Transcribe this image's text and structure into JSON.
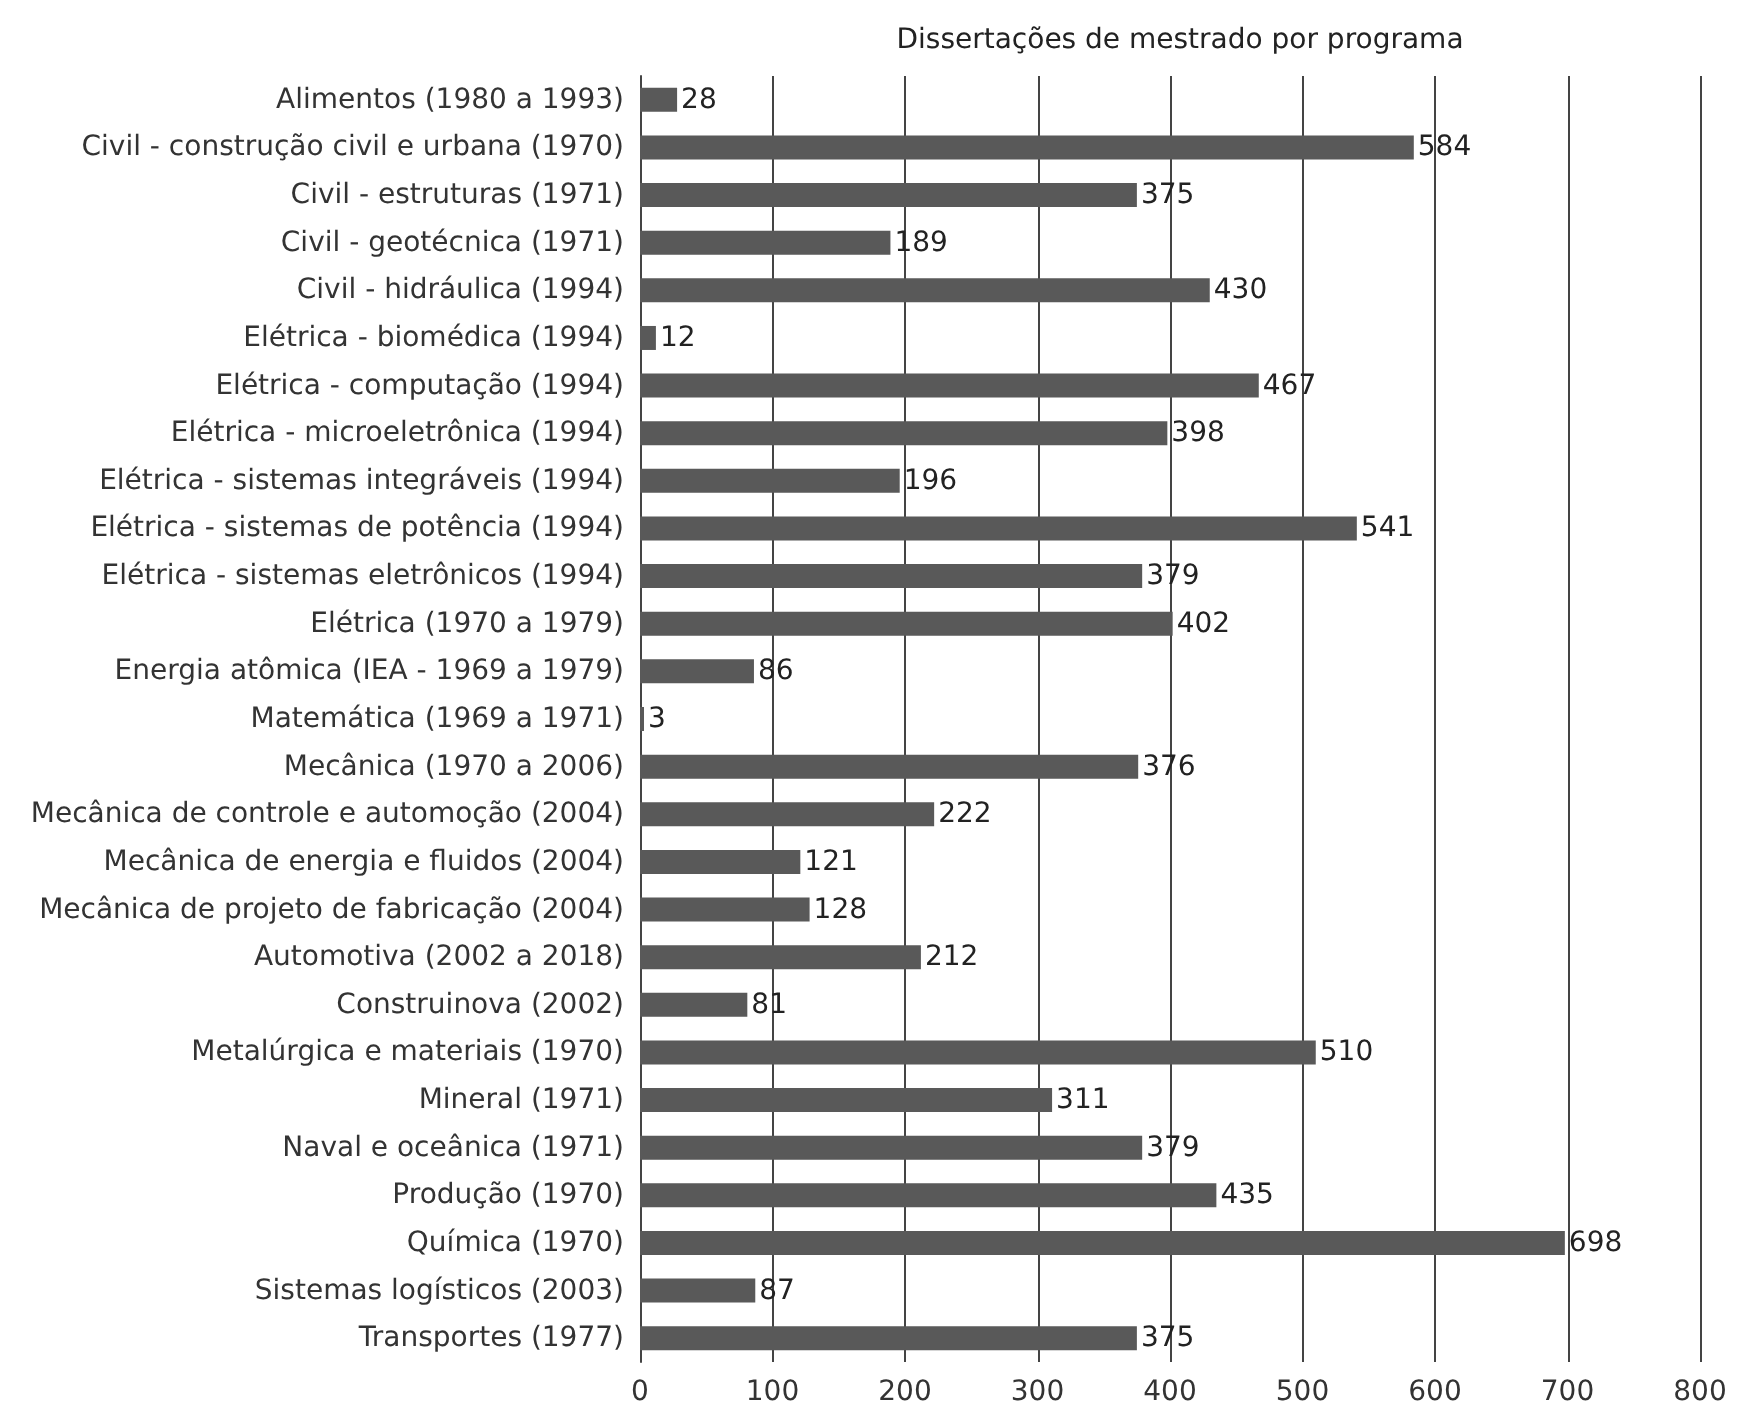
{
  "chart_data": {
    "type": "bar",
    "orientation": "horizontal",
    "title": "Dissertações de mestrado por programa",
    "categories": [
      "Alimentos (1980 a 1993)",
      "Civil - construção civil e urbana (1970)",
      "Civil - estruturas (1971)",
      "Civil - geotécnica (1971)",
      "Civil - hidráulica (1994)",
      "Elétrica - biomédica (1994)",
      "Elétrica - computação (1994)",
      "Elétrica - microeletrônica (1994)",
      "Elétrica - sistemas integráveis (1994)",
      "Elétrica - sistemas de potência (1994)",
      "Elétrica - sistemas eletrônicos (1994)",
      "Elétrica (1970 a 1979)",
      "Energia atômica (IEA - 1969 a 1979)",
      "Matemática (1969 a 1971)",
      "Mecânica (1970 a 2006)",
      "Mecânica de controle e automoção (2004)",
      "Mecânica de energia e fluidos (2004)",
      "Mecânica de projeto de fabricação (2004)",
      "Automotiva (2002 a 2018)",
      "Construinova (2002)",
      "Metalúrgica e materiais (1970)",
      "Mineral (1971)",
      "Naval e oceânica (1971)",
      "Produção (1970)",
      "Química (1970)",
      "Sistemas logísticos (2003)",
      "Transportes (1977)"
    ],
    "values": [
      28,
      584,
      375,
      189,
      430,
      12,
      467,
      398,
      196,
      541,
      379,
      402,
      86,
      3,
      376,
      222,
      121,
      128,
      212,
      81,
      510,
      311,
      379,
      435,
      698,
      87,
      375
    ],
    "color": "#595959",
    "xlim": [
      0,
      800
    ],
    "xticks": [
      0,
      100,
      200,
      300,
      400,
      500,
      600,
      700,
      800
    ],
    "grid": "x",
    "data_labels": true
  }
}
